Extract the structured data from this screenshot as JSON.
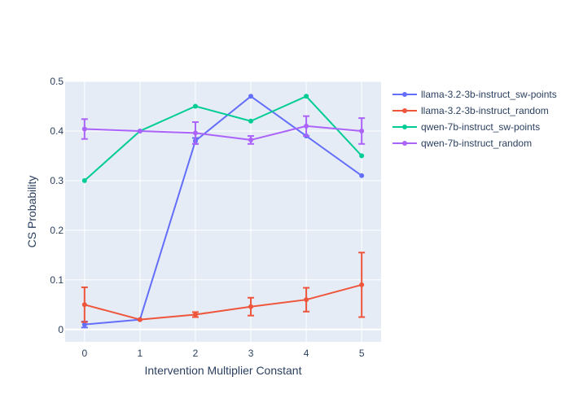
{
  "chart_data": {
    "type": "line",
    "title": "",
    "xlabel": "Intervention Multiplier Constant",
    "ylabel": "CS Probability",
    "x": [
      0,
      1,
      2,
      3,
      4,
      5
    ],
    "xlim": [
      -0.35,
      5.35
    ],
    "ylim": [
      -0.025,
      0.5
    ],
    "xticks": [
      0,
      1,
      2,
      3,
      4,
      5
    ],
    "yticks": [
      0,
      0.1,
      0.2,
      0.3,
      0.4,
      0.5
    ],
    "ytick_labels": [
      "0",
      "0.1",
      "0.2",
      "0.3",
      "0.4",
      "0.5"
    ],
    "grid": true,
    "legend_position": "top-right, outside plot",
    "background_color": "#e5ecf6",
    "series": [
      {
        "name": "llama-3.2-3b-instruct_sw-points",
        "color": "#636efa",
        "values": [
          0.01,
          0.02,
          0.38,
          0.47,
          0.39,
          0.31
        ],
        "error": [
          0.006,
          0,
          0.006,
          0,
          0,
          0
        ]
      },
      {
        "name": "llama-3.2-3b-instruct_random",
        "color": "#EF553B",
        "values": [
          0.05,
          0.02,
          0.03,
          0.046,
          0.06,
          0.09
        ],
        "error": [
          0.035,
          0,
          0.005,
          0.018,
          0.024,
          0.065
        ]
      },
      {
        "name": "qwen-7b-instruct_sw-points",
        "color": "#00cc96",
        "values": [
          0.3,
          0.4,
          0.45,
          0.42,
          0.47,
          0.35
        ],
        "error": [
          0,
          0,
          0,
          0,
          0,
          0
        ]
      },
      {
        "name": "qwen-7b-instruct_random",
        "color": "#ab63fa",
        "values": [
          0.404,
          0.4,
          0.396,
          0.382,
          0.41,
          0.4
        ],
        "error": [
          0.02,
          0,
          0.022,
          0.008,
          0.02,
          0.026
        ]
      }
    ]
  }
}
